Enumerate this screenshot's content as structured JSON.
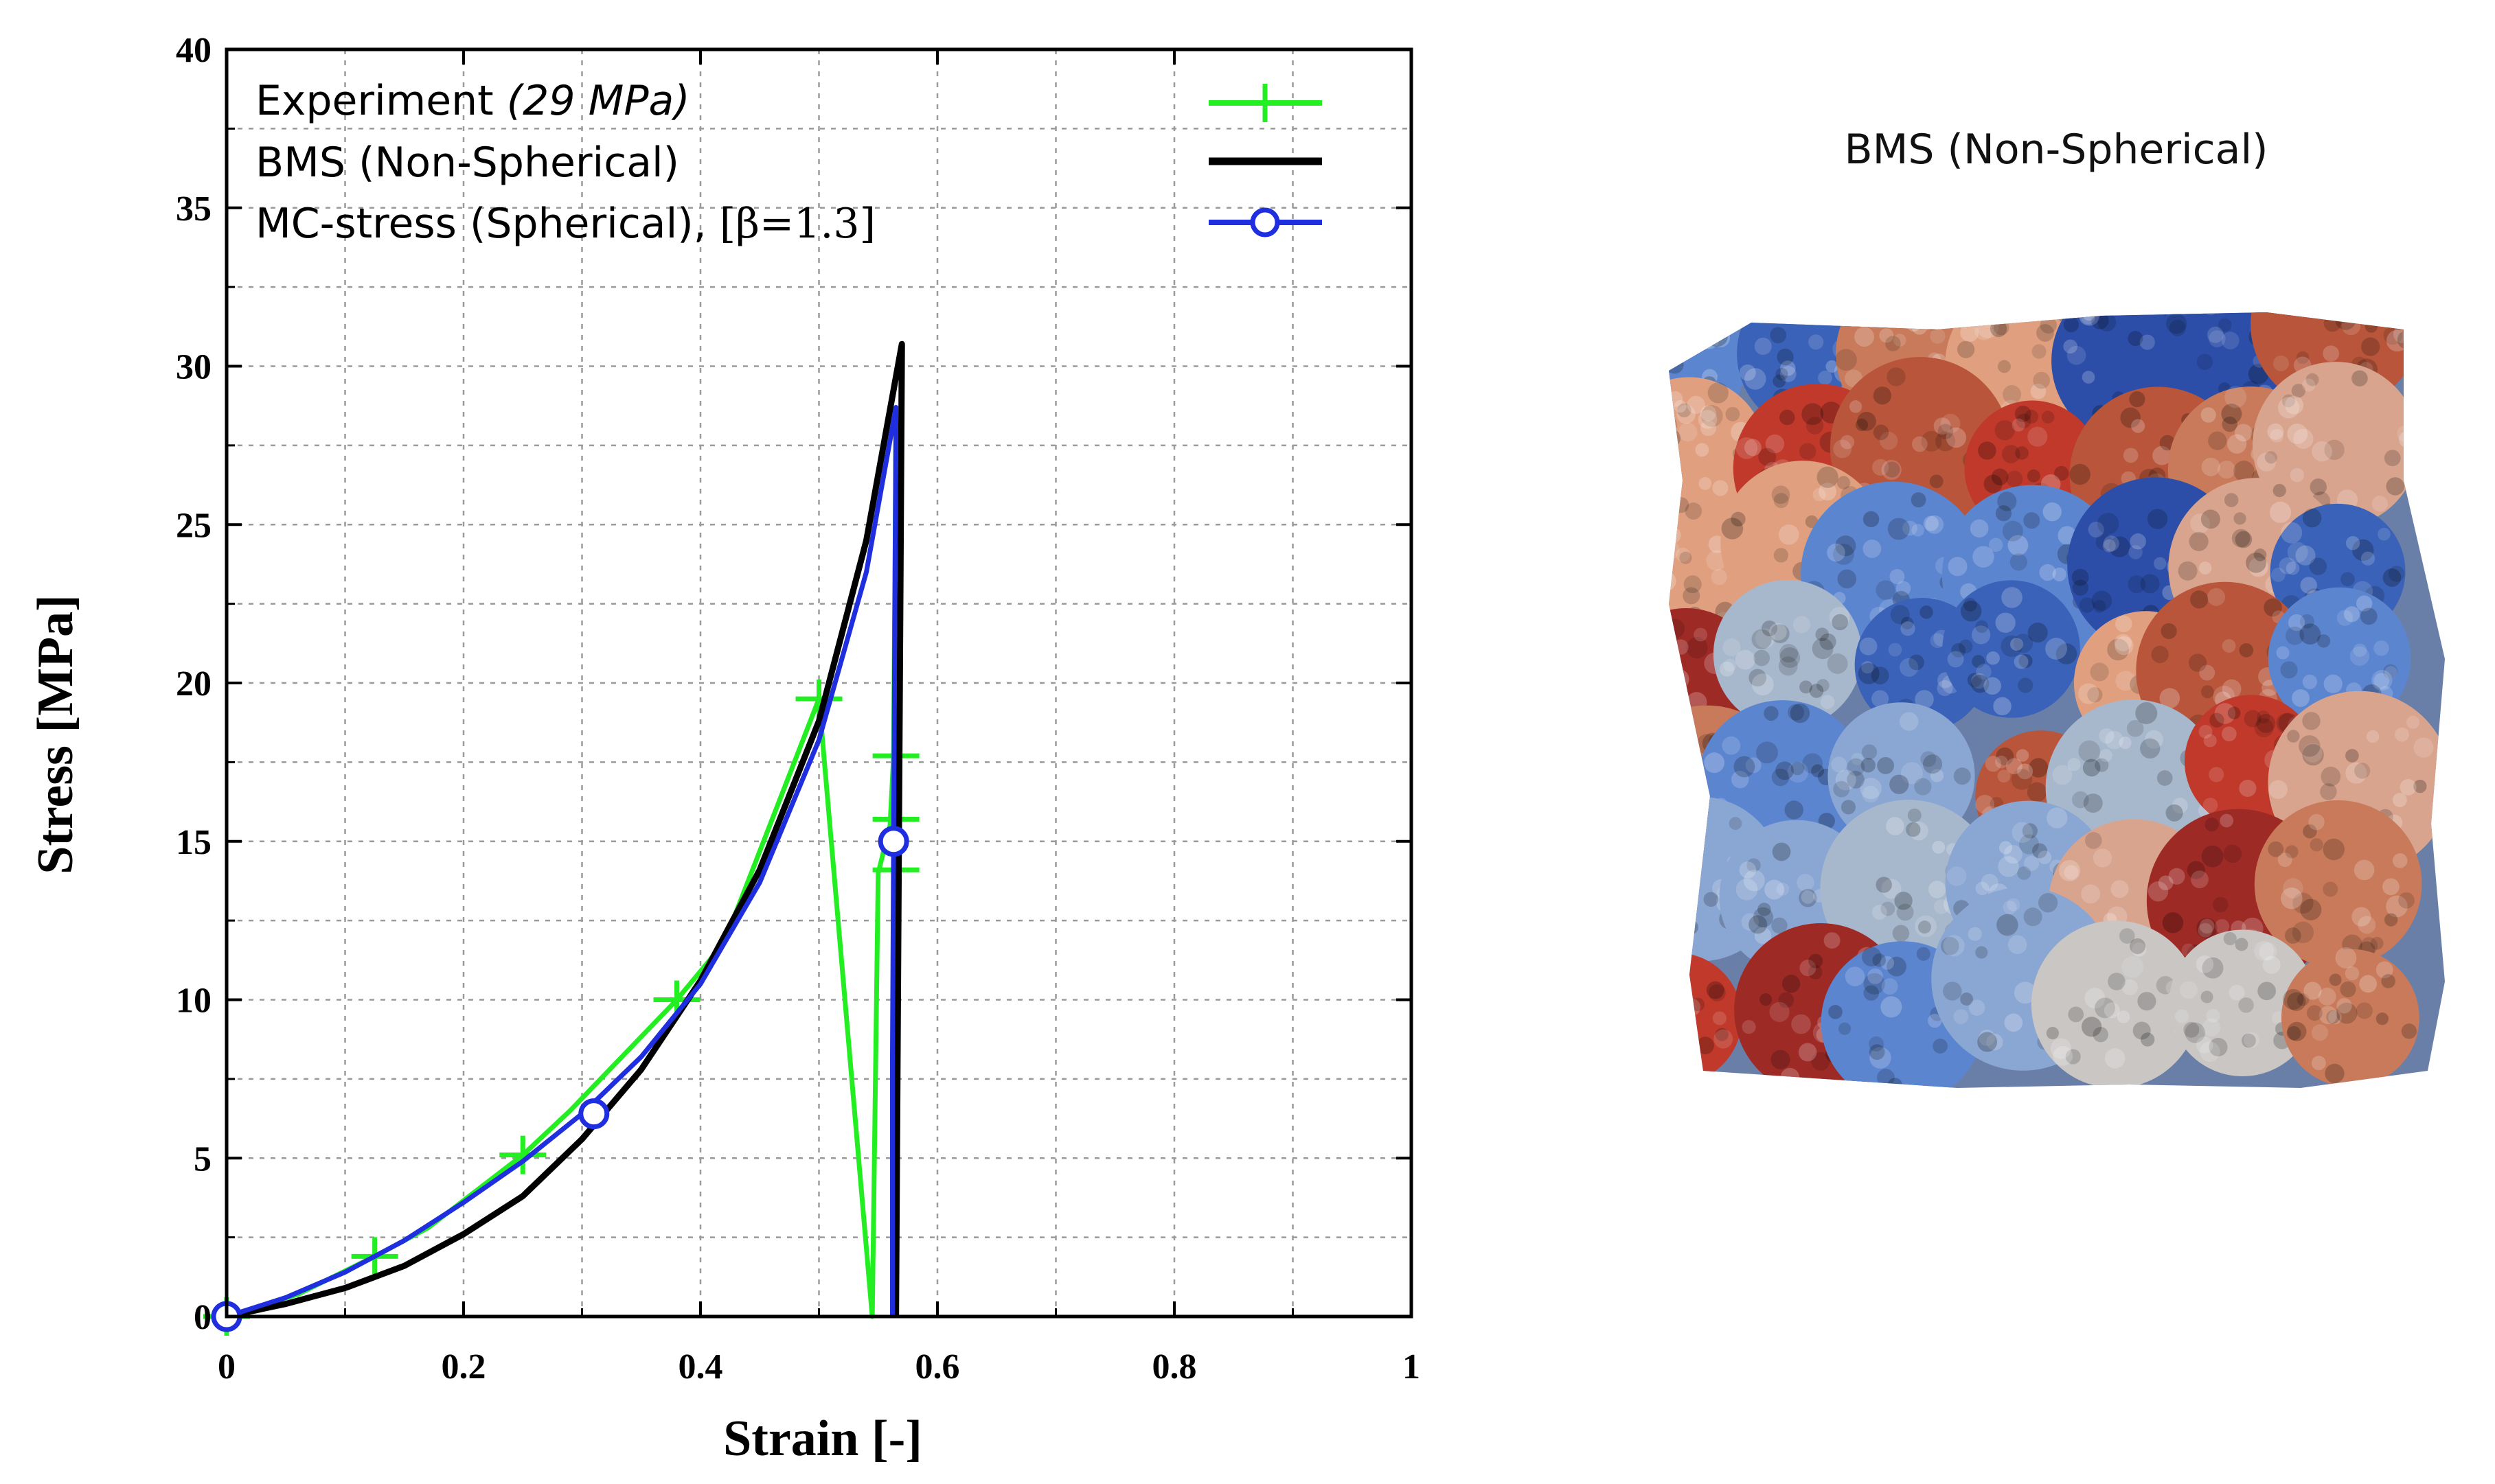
{
  "chart_data": {
    "type": "line",
    "xlabel": "Strain [-]",
    "ylabel": "Stress  [MPa]",
    "xlim": [
      0,
      1
    ],
    "ylim": [
      0,
      40
    ],
    "x_ticks": [
      0,
      0.2,
      0.4,
      0.6,
      0.8,
      1
    ],
    "x_tick_labels": [
      "0",
      "0.2",
      "0.4",
      "0.6",
      "0.8",
      "1"
    ],
    "y_ticks": [
      0,
      5,
      10,
      15,
      20,
      25,
      30,
      35,
      40
    ],
    "y_tick_labels": [
      "0",
      "5",
      "10",
      "15",
      "20",
      "25",
      "30",
      "35",
      "40"
    ],
    "grid": true,
    "legend_position": "top-left",
    "series": [
      {
        "name": "Experiment",
        "name_suffix": "(29 MPa)",
        "color": "#22ee22",
        "marker": "plus",
        "x": [
          0.0,
          0.06,
          0.125,
          0.17,
          0.25,
          0.29,
          0.38,
          0.42,
          0.5,
          0.545,
          0.55,
          0.56,
          0.563,
          0.565
        ],
        "y": [
          0.0,
          0.7,
          1.9,
          2.8,
          5.1,
          6.5,
          10.0,
          11.8,
          19.5,
          0.0,
          14.0,
          15.5,
          17.7,
          28.0
        ],
        "markers_x": [
          0.0,
          0.125,
          0.25,
          0.38,
          0.5,
          0.565,
          0.565,
          0.565
        ],
        "markers_y": [
          0.0,
          1.9,
          5.1,
          10.0,
          19.5,
          17.7,
          15.7,
          14.1
        ]
      },
      {
        "name": "BMS (Non-Spherical)",
        "color": "#000000",
        "marker": "none",
        "x": [
          0.0,
          0.05,
          0.1,
          0.15,
          0.2,
          0.25,
          0.3,
          0.35,
          0.4,
          0.45,
          0.5,
          0.54,
          0.57,
          0.565,
          0.565
        ],
        "y": [
          0.0,
          0.4,
          0.9,
          1.6,
          2.6,
          3.8,
          5.6,
          7.8,
          10.6,
          14.1,
          18.8,
          24.5,
          30.7,
          0.0,
          0.0
        ]
      },
      {
        "name": "MC-stress (Spherical), ",
        "name_suffix": "[β=1.3]",
        "color": "#1f2fe0",
        "marker": "circle",
        "x": [
          0.0,
          0.05,
          0.1,
          0.15,
          0.2,
          0.25,
          0.3,
          0.35,
          0.4,
          0.45,
          0.5,
          0.54,
          0.565,
          0.563,
          0.562,
          0.562
        ],
        "y": [
          0.0,
          0.6,
          1.4,
          2.4,
          3.6,
          4.9,
          6.4,
          8.2,
          10.5,
          13.7,
          18.2,
          23.5,
          28.7,
          15.0,
          8.0,
          0.0
        ],
        "markers_x": [
          0.0,
          0.31,
          0.563
        ],
        "markers_y": [
          0.0,
          6.4,
          15.0
        ]
      }
    ]
  },
  "side_image": {
    "caption": "BMS (Non-Spherical)",
    "palette": [
      "#3a62b8",
      "#2c4ea8",
      "#5c85d0",
      "#8aa6d2",
      "#a7b7cc",
      "#c9c6c4",
      "#d9a48e",
      "#c87a5a",
      "#b8553a",
      "#9e2a26",
      "#c0392b",
      "#e0a080"
    ]
  }
}
